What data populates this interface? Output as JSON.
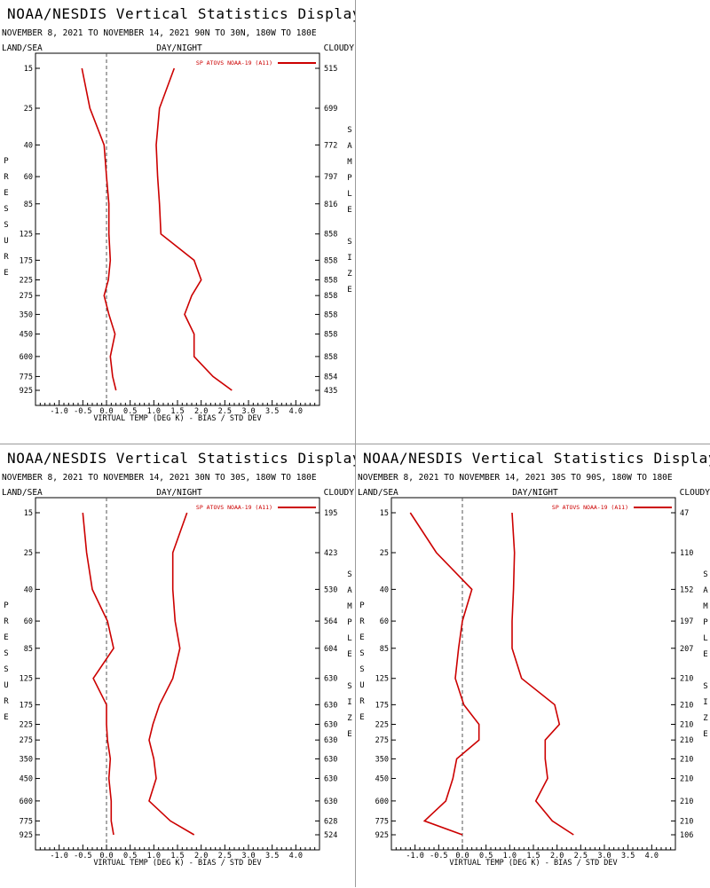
{
  "display": {
    "title": "NOAA/NESDIS Vertical Statistics Display",
    "date_range": "NOVEMBER 8, 2021 TO NOVEMBER 14, 2021",
    "lon_range": "180W TO 180E",
    "left_header": "LAND/SEA",
    "center_header": "DAY/NIGHT",
    "right_header": "CLOUDY",
    "y_side_label": "PRESSURE",
    "right_side_label_1": "SAMPLE",
    "right_side_label_2": "SIZE",
    "x_axis_label": "VIRTUAL TEMP (DEG K) - BIAS / STD DEV",
    "legend_label": "SP ATOVS NOAA-19 (A11)",
    "series_color": "#cc0000"
  },
  "chart_data": [
    {
      "type": "line",
      "lat_range": "90N TO 30N",
      "pressure_levels": [
        "15",
        "25",
        "40",
        "60",
        "85",
        "125",
        "175",
        "225",
        "275",
        "350",
        "450",
        "600",
        "775",
        "925"
      ],
      "x_ticks": [
        "-1.0",
        "-0.5",
        "0.0",
        "0.5",
        "1.0",
        "1.5",
        "2.0",
        "2.5",
        "3.0",
        "3.5",
        "4.0"
      ],
      "xlim": [
        -1.5,
        4.5
      ],
      "sample_size": [
        "515",
        "699",
        "772",
        "797",
        "816",
        "858",
        "858",
        "858",
        "858",
        "858",
        "858",
        "858",
        "854",
        "435"
      ],
      "series": [
        {
          "role": "bias",
          "values": [
            -0.52,
            -0.35,
            -0.05,
            0.0,
            0.05,
            0.05,
            0.08,
            0.04,
            -0.05,
            0.05,
            0.18,
            0.08,
            0.13,
            0.2
          ]
        },
        {
          "role": "std_dev",
          "values": [
            1.43,
            1.12,
            1.05,
            1.08,
            1.12,
            1.15,
            1.85,
            2.0,
            1.8,
            1.65,
            1.85,
            1.85,
            2.25,
            2.65
          ]
        }
      ]
    },
    {
      "type": "line",
      "lat_range": "30N TO 30S",
      "pressure_levels": [
        "15",
        "25",
        "40",
        "60",
        "85",
        "125",
        "175",
        "225",
        "275",
        "350",
        "450",
        "600",
        "775",
        "925"
      ],
      "x_ticks": [
        "-1.0",
        "-0.5",
        "0.0",
        "0.5",
        "1.0",
        "1.5",
        "2.0",
        "2.5",
        "3.0",
        "3.5",
        "4.0"
      ],
      "xlim": [
        -1.5,
        4.5
      ],
      "sample_size": [
        "195",
        "423",
        "530",
        "564",
        "604",
        "630",
        "630",
        "630",
        "630",
        "630",
        "630",
        "630",
        "628",
        "524"
      ],
      "series": [
        {
          "role": "bias",
          "values": [
            -0.5,
            -0.42,
            -0.3,
            0.02,
            0.15,
            -0.28,
            0.0,
            0.0,
            0.02,
            0.08,
            0.05,
            0.1,
            0.1,
            0.15
          ]
        },
        {
          "role": "std_dev",
          "values": [
            1.7,
            1.4,
            1.4,
            1.45,
            1.55,
            1.4,
            1.12,
            0.98,
            0.9,
            1.0,
            1.05,
            0.9,
            1.35,
            1.85
          ]
        }
      ]
    },
    {
      "type": "line",
      "lat_range": "30S TO 90S",
      "pressure_levels": [
        "15",
        "25",
        "40",
        "60",
        "85",
        "125",
        "175",
        "225",
        "275",
        "350",
        "450",
        "600",
        "775",
        "925"
      ],
      "x_ticks": [
        "-1.0",
        "-0.5",
        "0.0",
        "0.5",
        "1.0",
        "1.5",
        "2.0",
        "2.5",
        "3.0",
        "3.5",
        "4.0"
      ],
      "xlim": [
        -1.5,
        4.5
      ],
      "sample_size": [
        "47",
        "110",
        "152",
        "197",
        "207",
        "210",
        "210",
        "210",
        "210",
        "210",
        "210",
        "210",
        "210",
        "106"
      ],
      "series": [
        {
          "role": "bias",
          "values": [
            -1.1,
            -0.55,
            0.2,
            0.0,
            -0.08,
            -0.15,
            0.03,
            0.35,
            0.35,
            -0.12,
            -0.2,
            -0.35,
            -0.8,
            0.0
          ]
        },
        {
          "role": "std_dev",
          "values": [
            1.05,
            1.1,
            1.08,
            1.05,
            1.05,
            1.25,
            1.95,
            2.05,
            1.75,
            1.75,
            1.8,
            1.55,
            1.9,
            2.35
          ]
        }
      ]
    }
  ]
}
